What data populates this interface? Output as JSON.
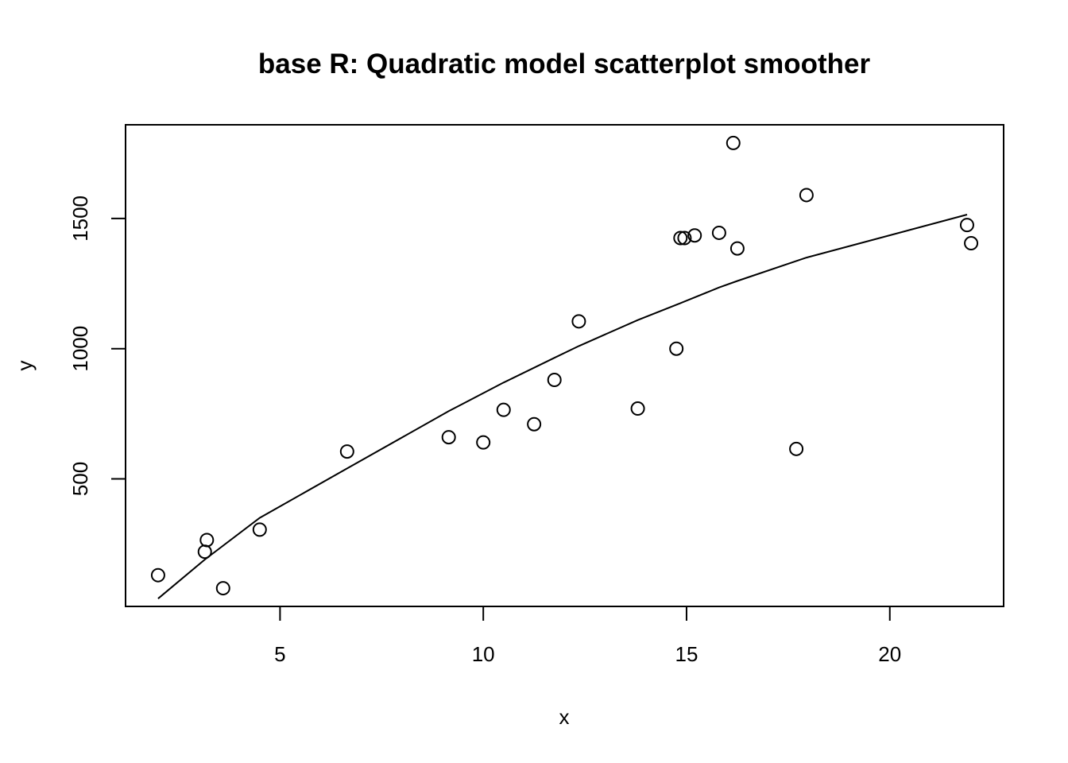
{
  "chart_data": {
    "type": "scatter",
    "title": "base R: Quadratic model scatterplot smoother",
    "xlabel": "x",
    "ylabel": "y",
    "xlim": [
      1.2,
      22.8
    ],
    "ylim": [
      10,
      1860
    ],
    "x_ticks": [
      5,
      10,
      15,
      20
    ],
    "y_ticks": [
      500,
      1000,
      1500
    ],
    "x_tick_labels": [
      "5",
      "10",
      "15",
      "20"
    ],
    "y_tick_labels": [
      "500",
      "1000",
      "1500"
    ],
    "grid": false,
    "legend": "none",
    "point_color": "#000000",
    "points": [
      {
        "x": 2.0,
        "y": 130
      },
      {
        "x": 3.15,
        "y": 220
      },
      {
        "x": 3.2,
        "y": 265
      },
      {
        "x": 3.6,
        "y": 80
      },
      {
        "x": 4.5,
        "y": 305
      },
      {
        "x": 6.65,
        "y": 605
      },
      {
        "x": 9.15,
        "y": 660
      },
      {
        "x": 10.0,
        "y": 640
      },
      {
        "x": 10.5,
        "y": 765
      },
      {
        "x": 11.25,
        "y": 710
      },
      {
        "x": 11.75,
        "y": 880
      },
      {
        "x": 12.35,
        "y": 1105
      },
      {
        "x": 13.8,
        "y": 770
      },
      {
        "x": 14.75,
        "y": 1000
      },
      {
        "x": 14.85,
        "y": 1425
      },
      {
        "x": 14.95,
        "y": 1425
      },
      {
        "x": 15.2,
        "y": 1435
      },
      {
        "x": 15.8,
        "y": 1445
      },
      {
        "x": 16.15,
        "y": 1790
      },
      {
        "x": 16.25,
        "y": 1385
      },
      {
        "x": 17.7,
        "y": 615
      },
      {
        "x": 17.95,
        "y": 1590
      },
      {
        "x": 21.9,
        "y": 1475
      },
      {
        "x": 22.0,
        "y": 1405
      }
    ],
    "series": [
      {
        "type": "line",
        "x": [
          2.0,
          3.15,
          4.5,
          6.65,
          9.15,
          10.5,
          11.75,
          12.35,
          13.8,
          14.85,
          15.8,
          16.25,
          17.95,
          21.9
        ],
        "y": [
          40,
          190,
          350,
          540,
          760,
          870,
          965,
          1010,
          1110,
          1175,
          1235,
          1260,
          1350,
          1515
        ]
      }
    ]
  }
}
